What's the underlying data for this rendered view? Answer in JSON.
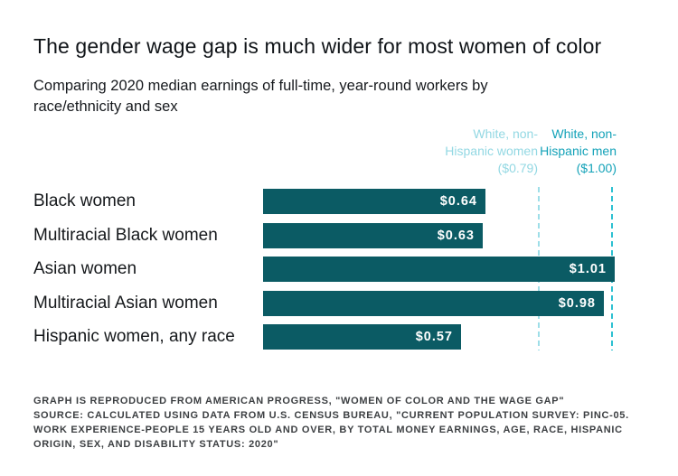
{
  "title": "The gender wage gap is much wider for most women of color",
  "subtitle": "Comparing 2020 median earnings of full-time, year-round workers by race/ethnicity and sex",
  "subtitle_lines": [
    "Comparing 2020 median earnings of full-time, year-round workers by",
    "race/ethnicity and sex"
  ],
  "colors": {
    "bar": "#0b5b64",
    "bar_value_text": "#ffffff",
    "women_reference_line": "#9edee8",
    "men_reference_line": "#2cc0d1",
    "women_reference_label": "#93d8e3",
    "men_reference_label": "#13a2b8",
    "title_text": "#101418",
    "footer_text": "#3c3f42"
  },
  "chart_data": {
    "type": "bar",
    "orientation": "horizontal",
    "title": "The gender wage gap is much wider for most women of color",
    "xlabel": "",
    "ylabel": "",
    "xlim": [
      0,
      1.05
    ],
    "grid": false,
    "categories": [
      "Black women",
      "Multiracial Black women",
      "Asian women",
      "Multiracial Asian women",
      "Hispanic women, any race"
    ],
    "values": [
      0.64,
      0.63,
      1.01,
      0.98,
      0.57
    ],
    "value_labels": [
      "$0.64",
      "$0.63",
      "$1.01",
      "$0.98",
      "$0.57"
    ],
    "reference_lines": [
      {
        "name": "White, non-Hispanic women",
        "value": 0.79,
        "label_lines": [
          "White, non-",
          "Hispanic women",
          "($0.79)"
        ],
        "style": "dashed"
      },
      {
        "name": "White, non-Hispanic men",
        "value": 1.0,
        "label_lines": [
          "White, non-",
          "Hispanic men",
          "($1.00)"
        ],
        "style": "dashed"
      }
    ]
  },
  "footer": {
    "lines": [
      "GRAPH IS REPRODUCED FROM AMERICAN PROGRESS, \"WOMEN OF COLOR AND THE WAGE GAP\"",
      "SOURCE: CALCULATED USING DATA FROM U.S. CENSUS BUREAU, \"CURRENT POPULATION SURVEY: PINC-05.",
      "WORK EXPERIENCE-PEOPLE 15 YEARS OLD AND OVER, BY TOTAL MONEY EARNINGS, AGE, RACE, HISPANIC",
      "ORIGIN, SEX, AND DISABILITY STATUS: 2020\""
    ]
  }
}
